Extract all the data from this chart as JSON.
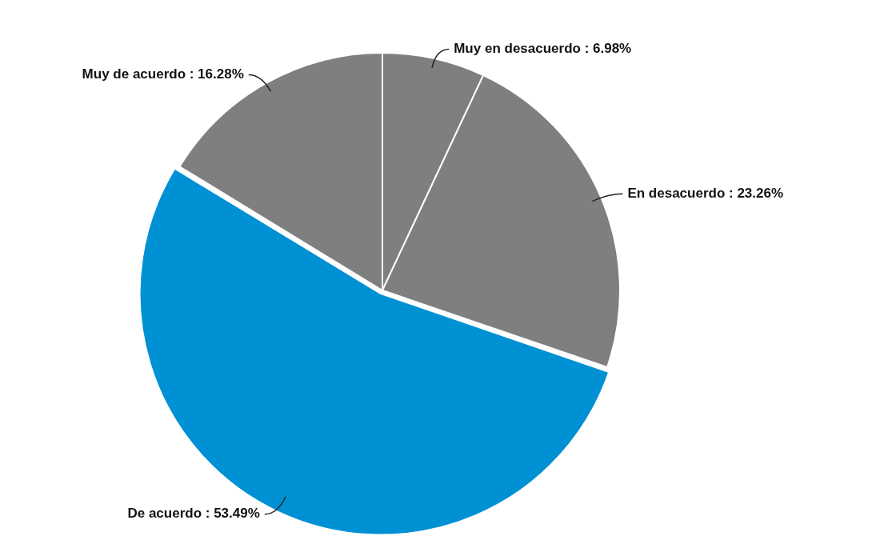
{
  "chart_data": {
    "type": "pie",
    "categories": [
      "Muy en desacuerdo",
      "En desacuerdo",
      "De acuerdo",
      "Muy de acuerdo"
    ],
    "values": [
      6.98,
      23.26,
      53.49,
      16.28
    ],
    "colors": [
      "#7f7f7f",
      "#7f7f7f",
      "#0090d4",
      "#7f7f7f"
    ],
    "value_labels": [
      ": 6.98%",
      ": 23.26%",
      ": 53.49%",
      ": 16.28%"
    ],
    "legend": false
  }
}
